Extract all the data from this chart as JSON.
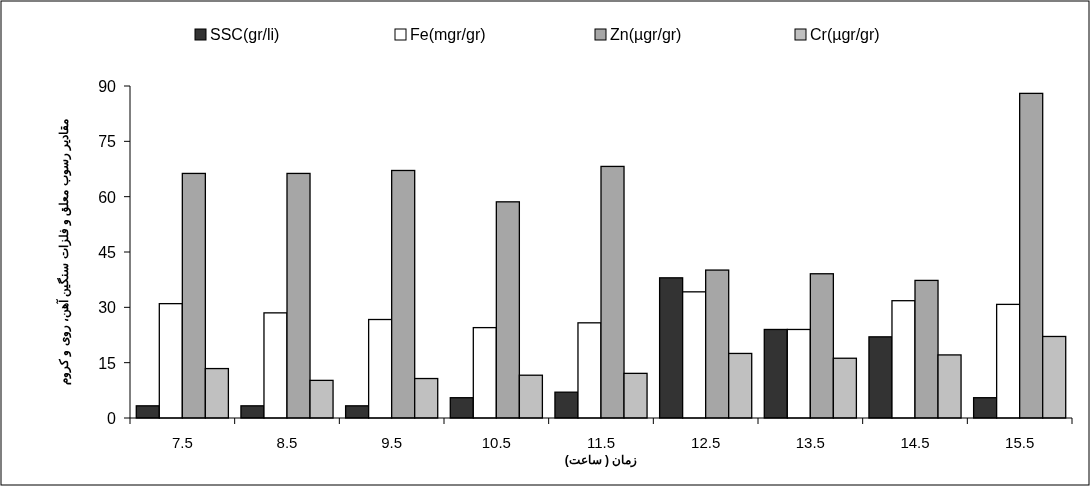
{
  "chart_data": {
    "type": "bar",
    "xlabel": "زمان ( ساعت)",
    "ylabel": "مقادیر رسوب معلق و فلزات سنگین آهن، روی و کروم",
    "categories": [
      "7.5",
      "8.5",
      "9.5",
      "10.5",
      "11.5",
      "12.5",
      "13.5",
      "14.5",
      "15.5"
    ],
    "series": [
      {
        "name": "SSC(gr/li)",
        "color": "#333333",
        "values": [
          3.3,
          3.3,
          3.3,
          5.5,
          7,
          38,
          24,
          22,
          5.5
        ]
      },
      {
        "name": "Fe(mgr/gr)",
        "color": "#ffffff",
        "values": [
          31,
          28.5,
          26.7,
          24.5,
          25.8,
          34.2,
          24,
          31.8,
          30.8
        ]
      },
      {
        "name": "Zn(µgr/gr)",
        "color": "#a6a6a6",
        "values": [
          66.3,
          66.3,
          67.1,
          58.6,
          68.2,
          40.1,
          39.1,
          37.3,
          88
        ]
      },
      {
        "name": "Cr(µgr/gr)",
        "color": "#c0c0c0",
        "values": [
          13.4,
          10.2,
          10.7,
          11.6,
          12.1,
          17.5,
          16.2,
          17.1,
          22.1
        ]
      }
    ],
    "ylim": [
      0,
      90
    ],
    "yticks": [
      0,
      15,
      30,
      45,
      60,
      75,
      90
    ],
    "grid": false,
    "legend": "top"
  }
}
